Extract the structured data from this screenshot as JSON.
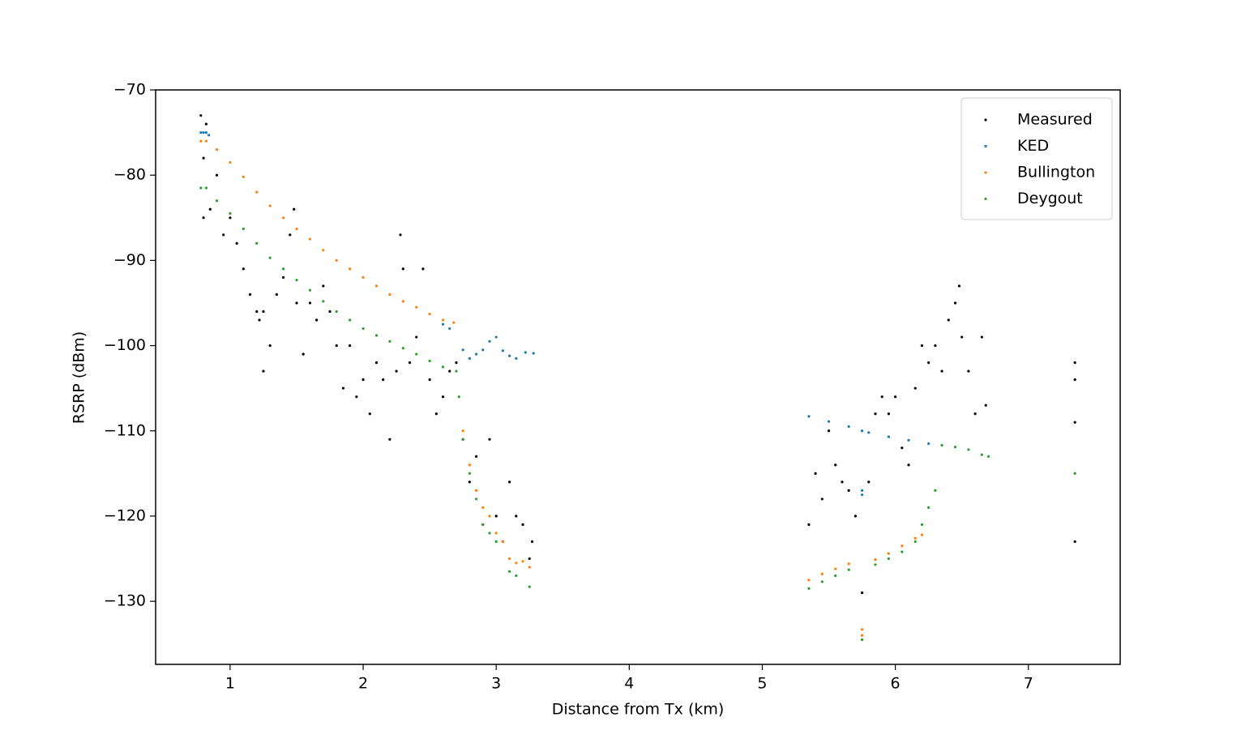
{
  "chart_data": {
    "type": "scatter",
    "xlabel": "Distance from Tx (km)",
    "ylabel": "RSRP (dBm)",
    "xlim": [
      0.44,
      7.69
    ],
    "ylim": [
      -137.4,
      -70
    ],
    "xticks": [
      1,
      2,
      3,
      4,
      5,
      6,
      7
    ],
    "yticks": [
      {
        "value": -70,
        "label": "−70"
      },
      {
        "value": -80,
        "label": "−80"
      },
      {
        "value": -90,
        "label": "−90"
      },
      {
        "value": -100,
        "label": "−100"
      },
      {
        "value": -110,
        "label": "−110"
      },
      {
        "value": -120,
        "label": "−120"
      },
      {
        "value": -130,
        "label": "−130"
      }
    ],
    "legend": "upper right",
    "series": [
      {
        "name": "Measured",
        "color": "#000000",
        "x": [
          0.78,
          0.8,
          0.8,
          0.82,
          0.85,
          0.9,
          0.95,
          1.0,
          1.05,
          1.1,
          1.15,
          1.2,
          1.22,
          1.25,
          1.25,
          1.3,
          1.35,
          1.4,
          1.45,
          1.48,
          1.5,
          1.55,
          1.6,
          1.65,
          1.7,
          1.75,
          1.8,
          1.85,
          1.9,
          1.95,
          2.0,
          2.05,
          2.1,
          2.15,
          2.2,
          2.25,
          2.28,
          2.3,
          2.35,
          2.4,
          2.45,
          2.5,
          2.55,
          2.6,
          2.65,
          2.7,
          2.75,
          2.8,
          2.85,
          2.9,
          2.95,
          3.0,
          3.05,
          3.1,
          3.15,
          3.2,
          3.25,
          3.27,
          5.35,
          5.4,
          5.45,
          5.5,
          5.55,
          5.6,
          5.65,
          5.7,
          5.75,
          5.8,
          5.85,
          5.9,
          5.95,
          6.0,
          6.05,
          6.1,
          6.15,
          6.2,
          6.25,
          6.3,
          6.35,
          6.4,
          6.45,
          6.48,
          6.5,
          6.55,
          6.6,
          6.65,
          6.68,
          7.35,
          7.35,
          7.35,
          7.35
        ],
        "values": [
          -73,
          -78,
          -85,
          -74,
          -84,
          -80,
          -87,
          -85,
          -88,
          -91,
          -94,
          -96,
          -97,
          -103,
          -96,
          -100,
          -94,
          -92,
          -87,
          -84,
          -95,
          -101,
          -95,
          -97,
          -93,
          -96,
          -100,
          -105,
          -100,
          -106,
          -104,
          -108,
          -102,
          -104,
          -111,
          -103,
          -87,
          -91,
          -102,
          -99,
          -91,
          -104,
          -108,
          -106,
          -103,
          -102,
          -111,
          -116,
          -113,
          -121,
          -111,
          -120,
          -123,
          -116,
          -120,
          -121,
          -125,
          -123,
          -121,
          -115,
          -118,
          -110,
          -114,
          -116,
          -117,
          -120,
          -129,
          -116,
          -108,
          -106,
          -108,
          -106,
          -112,
          -114,
          -105,
          -100,
          -102,
          -100,
          -103,
          -97,
          -95,
          -93,
          -99,
          -103,
          -108,
          -99,
          -107,
          -102,
          -104,
          -109,
          -123
        ]
      },
      {
        "name": "KED",
        "color": "#1f77b4",
        "x": [
          0.78,
          0.8,
          0.82,
          0.84,
          2.6,
          2.65,
          2.75,
          2.8,
          2.85,
          2.9,
          2.95,
          3.0,
          3.05,
          3.1,
          3.15,
          3.22,
          3.28,
          5.35,
          5.5,
          5.65,
          5.75,
          5.8,
          5.95,
          6.1,
          6.25,
          5.75,
          5.75
        ],
        "values": [
          -75,
          -75,
          -75,
          -75.3,
          -97.5,
          -98,
          -100.5,
          -101.5,
          -101,
          -100.5,
          -99.5,
          -99,
          -100.6,
          -101.2,
          -101.5,
          -100.8,
          -100.9,
          -108.3,
          -108.9,
          -109.5,
          -110,
          -110.2,
          -110.7,
          -111.1,
          -111.5,
          -117,
          -117.5
        ]
      },
      {
        "name": "Bullington",
        "color": "#ff7f0e",
        "x": [
          0.78,
          0.82,
          0.9,
          1.0,
          1.1,
          1.2,
          1.3,
          1.4,
          1.5,
          1.6,
          1.7,
          1.8,
          1.9,
          2.0,
          2.1,
          2.2,
          2.3,
          2.4,
          2.5,
          2.6,
          2.68,
          2.75,
          2.8,
          2.85,
          2.9,
          2.95,
          3.0,
          3.05,
          3.1,
          3.15,
          3.2,
          3.25,
          5.35,
          5.45,
          5.55,
          5.65,
          5.75,
          5.75,
          5.85,
          5.95,
          6.05,
          6.15,
          6.2
        ],
        "values": [
          -76,
          -76,
          -77,
          -78.5,
          -80.2,
          -82,
          -83.6,
          -85,
          -86.3,
          -87.5,
          -88.8,
          -90,
          -91,
          -92,
          -93,
          -94,
          -94.8,
          -95.5,
          -96.3,
          -97,
          -97.3,
          -110,
          -114,
          -117,
          -119,
          -120,
          -122,
          -123,
          -125,
          -125.5,
          -125.3,
          -126,
          -127.5,
          -126.8,
          -126.2,
          -125.6,
          -133.3,
          -134,
          -125.1,
          -124.4,
          -123.5,
          -122.6,
          -122.2
        ]
      },
      {
        "name": "Deygout",
        "color": "#2ca02c",
        "x": [
          0.78,
          0.82,
          0.9,
          1.0,
          1.1,
          1.2,
          1.3,
          1.4,
          1.5,
          1.6,
          1.7,
          1.8,
          1.9,
          2.0,
          2.1,
          2.2,
          2.3,
          2.4,
          2.5,
          2.6,
          2.7,
          2.72,
          2.75,
          2.8,
          2.85,
          2.9,
          2.95,
          3.0,
          3.1,
          3.15,
          3.25,
          5.35,
          5.45,
          5.55,
          5.65,
          5.75,
          5.85,
          5.95,
          6.05,
          6.15,
          6.2,
          6.25,
          6.3,
          6.35,
          6.45,
          6.55,
          6.65,
          6.7,
          7.35
        ],
        "values": [
          -81.5,
          -81.5,
          -83,
          -84.5,
          -86.3,
          -88,
          -89.7,
          -91,
          -92.3,
          -93.5,
          -94.8,
          -96,
          -97,
          -98,
          -98.8,
          -99.5,
          -100.3,
          -101,
          -101.8,
          -102.5,
          -103,
          -106,
          -111,
          -115,
          -118,
          -121,
          -122,
          -123,
          -126.5,
          -127,
          -128.3,
          -128.5,
          -127.7,
          -127,
          -126.3,
          -134.5,
          -125.7,
          -125,
          -124.2,
          -123,
          -121,
          -119,
          -117,
          -111.7,
          -111.9,
          -112.2,
          -112.8,
          -113,
          -115
        ]
      }
    ]
  }
}
